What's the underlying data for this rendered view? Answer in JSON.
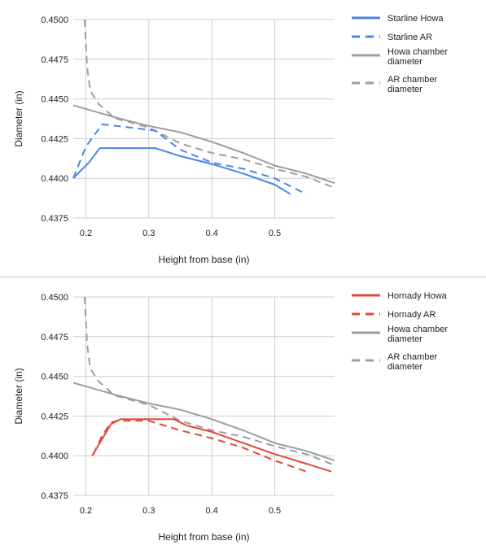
{
  "chart_data": [
    {
      "type": "line",
      "title": "",
      "xlabel": "Height from base (in)",
      "ylabel": "Diameter (in)",
      "xlim": [
        0.18,
        0.595
      ],
      "ylim": [
        0.4375,
        0.45
      ],
      "x_ticks": [
        "0.2",
        "0.3",
        "0.4",
        "0.5"
      ],
      "x_tick_values": [
        0.2,
        0.3,
        0.4,
        0.5
      ],
      "y_ticks": [
        "0.4375",
        "0.4400",
        "0.4425",
        "0.4450",
        "0.4475",
        "0.4500"
      ],
      "y_tick_values": [
        0.4375,
        0.44,
        0.4425,
        0.445,
        0.4475,
        0.45
      ],
      "grid": true,
      "legend_position": "right",
      "series": [
        {
          "name": "Starline Howa",
          "color": "#4a86e8",
          "dash": "solid",
          "points": [
            [
              0.18,
              0.44
            ],
            [
              0.205,
              0.441
            ],
            [
              0.222,
              0.4419
            ],
            [
              0.31,
              0.4419
            ],
            [
              0.35,
              0.4414
            ],
            [
              0.4,
              0.4409
            ],
            [
              0.45,
              0.4403
            ],
            [
              0.5,
              0.4396
            ],
            [
              0.525,
              0.439
            ]
          ]
        },
        {
          "name": "Starline AR",
          "color": "#4a86e8",
          "dash": "dashed",
          "points": [
            [
              0.18,
              0.44
            ],
            [
              0.2,
              0.442
            ],
            [
              0.226,
              0.4434
            ],
            [
              0.27,
              0.4432
            ],
            [
              0.31,
              0.443
            ],
            [
              0.35,
              0.4418
            ],
            [
              0.4,
              0.441
            ],
            [
              0.45,
              0.4406
            ],
            [
              0.5,
              0.44
            ],
            [
              0.55,
              0.439
            ]
          ]
        },
        {
          "name": "Howa chamber diameter",
          "color": "#9e9e9e",
          "dash": "solid",
          "points": [
            [
              0.18,
              0.4446
            ],
            [
              0.25,
              0.4438
            ],
            [
              0.3,
              0.4433
            ],
            [
              0.35,
              0.4429
            ],
            [
              0.4,
              0.4423
            ],
            [
              0.45,
              0.4416
            ],
            [
              0.5,
              0.4408
            ],
            [
              0.55,
              0.4403
            ],
            [
              0.595,
              0.4397
            ]
          ]
        },
        {
          "name": "AR chamber diameter",
          "color": "#9e9e9e",
          "dash": "dashed",
          "points": [
            [
              0.198,
              0.45
            ],
            [
              0.2,
              0.4485
            ],
            [
              0.202,
              0.447
            ],
            [
              0.207,
              0.4455
            ],
            [
              0.22,
              0.4447
            ],
            [
              0.245,
              0.4438
            ],
            [
              0.3,
              0.4432
            ],
            [
              0.35,
              0.4422
            ],
            [
              0.4,
              0.4416
            ],
            [
              0.45,
              0.4412
            ],
            [
              0.5,
              0.4406
            ],
            [
              0.55,
              0.4401
            ],
            [
              0.595,
              0.4394
            ]
          ]
        }
      ]
    },
    {
      "type": "line",
      "title": "",
      "xlabel": "Height from base (in)",
      "ylabel": "Diameter (in)",
      "xlim": [
        0.18,
        0.595
      ],
      "ylim": [
        0.4375,
        0.45
      ],
      "x_ticks": [
        "0.2",
        "0.3",
        "0.4",
        "0.5"
      ],
      "x_tick_values": [
        0.2,
        0.3,
        0.4,
        0.5
      ],
      "y_ticks": [
        "0.4375",
        "0.4400",
        "0.4425",
        "0.4450",
        "0.4475",
        "0.4500"
      ],
      "y_tick_values": [
        0.4375,
        0.44,
        0.4425,
        0.445,
        0.4475,
        0.45
      ],
      "grid": true,
      "legend_position": "right",
      "series": [
        {
          "name": "Hornady Howa",
          "color": "#e04a3a",
          "dash": "solid",
          "points": [
            [
              0.21,
              0.44
            ],
            [
              0.225,
              0.441
            ],
            [
              0.24,
              0.442
            ],
            [
              0.255,
              0.4423
            ],
            [
              0.34,
              0.4423
            ],
            [
              0.36,
              0.4419
            ],
            [
              0.4,
              0.4415
            ],
            [
              0.45,
              0.4408
            ],
            [
              0.5,
              0.4401
            ],
            [
              0.55,
              0.4395
            ],
            [
              0.59,
              0.439
            ]
          ]
        },
        {
          "name": "Hornady AR",
          "color": "#e04a3a",
          "dash": "dashed",
          "points": [
            [
              0.212,
              0.4401
            ],
            [
              0.225,
              0.4412
            ],
            [
              0.24,
              0.4421
            ],
            [
              0.25,
              0.4422
            ],
            [
              0.3,
              0.4422
            ],
            [
              0.35,
              0.4416
            ],
            [
              0.4,
              0.4411
            ],
            [
              0.45,
              0.4405
            ],
            [
              0.5,
              0.4397
            ],
            [
              0.55,
              0.439
            ]
          ]
        },
        {
          "name": "Howa chamber diameter",
          "color": "#9e9e9e",
          "dash": "solid",
          "points": [
            [
              0.18,
              0.4446
            ],
            [
              0.25,
              0.4438
            ],
            [
              0.3,
              0.4433
            ],
            [
              0.35,
              0.4429
            ],
            [
              0.4,
              0.4423
            ],
            [
              0.45,
              0.4416
            ],
            [
              0.5,
              0.4408
            ],
            [
              0.55,
              0.4403
            ],
            [
              0.595,
              0.4397
            ]
          ]
        },
        {
          "name": "AR chamber diameter",
          "color": "#9e9e9e",
          "dash": "dashed",
          "points": [
            [
              0.198,
              0.45
            ],
            [
              0.2,
              0.4485
            ],
            [
              0.202,
              0.447
            ],
            [
              0.207,
              0.4455
            ],
            [
              0.22,
              0.4447
            ],
            [
              0.245,
              0.4438
            ],
            [
              0.3,
              0.4432
            ],
            [
              0.35,
              0.4422
            ],
            [
              0.4,
              0.4416
            ],
            [
              0.45,
              0.4412
            ],
            [
              0.5,
              0.4406
            ],
            [
              0.55,
              0.4401
            ],
            [
              0.595,
              0.4394
            ]
          ]
        }
      ]
    }
  ]
}
